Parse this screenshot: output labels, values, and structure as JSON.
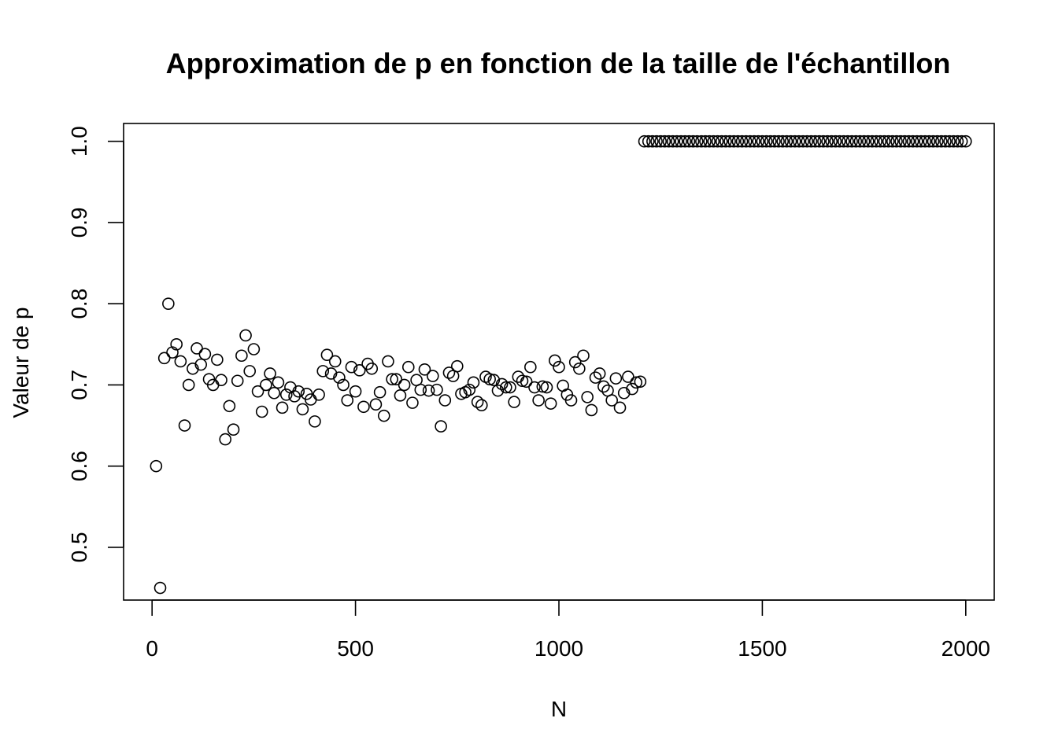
{
  "chart_data": {
    "type": "scatter",
    "title": "Approximation de p en fonction de la taille de l'échantillon",
    "xlabel": "N",
    "ylabel": "Valeur de p",
    "xlim": [
      -70,
      2070
    ],
    "ylim": [
      0.435,
      1.022
    ],
    "xticks": [
      0,
      500,
      1000,
      1500,
      2000
    ],
    "yticks": [
      0.5,
      0.6,
      0.7,
      0.8,
      0.9,
      1.0
    ],
    "xtick_labels": [
      "0",
      "500",
      "1000",
      "1500",
      "2000"
    ],
    "ytick_labels": [
      "0.5",
      "0.6",
      "0.7",
      "0.8",
      "0.9",
      "1.0"
    ],
    "grid": false,
    "legend": "none",
    "marker": "open-circle",
    "colors": {
      "stroke": "#000000",
      "background": "#ffffff"
    },
    "series": [
      {
        "x": [
          10,
          20,
          30,
          40,
          50,
          60,
          70,
          80,
          90,
          100,
          110,
          120,
          130,
          140,
          150,
          160,
          170,
          180,
          190,
          200,
          210,
          220,
          230,
          240,
          250,
          260,
          270,
          280,
          290,
          300,
          310,
          320,
          330,
          340,
          350,
          360,
          370,
          380,
          390,
          400,
          410,
          420,
          430,
          440,
          450,
          460,
          470,
          480,
          490,
          500,
          510,
          520,
          530,
          540,
          550,
          560,
          570,
          580,
          590,
          600,
          610,
          620,
          630,
          640,
          650,
          660,
          670,
          680,
          690,
          700,
          710,
          720,
          730,
          740,
          750,
          760,
          770,
          780,
          790,
          800,
          810,
          820,
          830,
          840,
          850,
          860,
          870,
          880,
          890,
          900,
          910,
          920,
          930,
          940,
          950,
          960,
          970,
          980,
          990,
          1000,
          1010,
          1020,
          1030,
          1040,
          1050,
          1060,
          1070,
          1080,
          1090,
          1100,
          1110,
          1120,
          1130,
          1140,
          1150,
          1160,
          1170,
          1180,
          1190,
          1200,
          1210,
          1220,
          1230,
          1240,
          1250,
          1260,
          1270,
          1280,
          1290,
          1300,
          1310,
          1320,
          1330,
          1340,
          1350,
          1360,
          1370,
          1380,
          1390,
          1400,
          1410,
          1420,
          1430,
          1440,
          1450,
          1460,
          1470,
          1480,
          1490,
          1500,
          1510,
          1520,
          1530,
          1540,
          1550,
          1560,
          1570,
          1580,
          1590,
          1600,
          1610,
          1620,
          1630,
          1640,
          1650,
          1660,
          1670,
          1680,
          1690,
          1700,
          1710,
          1720,
          1730,
          1740,
          1750,
          1760,
          1770,
          1780,
          1790,
          1800,
          1810,
          1820,
          1830,
          1840,
          1850,
          1860,
          1870,
          1880,
          1890,
          1900,
          1910,
          1920,
          1930,
          1940,
          1950,
          1960,
          1970,
          1980,
          1990,
          2000
        ],
        "y": [
          0.6,
          0.45,
          0.733,
          0.8,
          0.74,
          0.75,
          0.729,
          0.65,
          0.7,
          0.72,
          0.745,
          0.725,
          0.738,
          0.707,
          0.7,
          0.731,
          0.706,
          0.633,
          0.674,
          0.645,
          0.705,
          0.736,
          0.761,
          0.717,
          0.744,
          0.692,
          0.667,
          0.7,
          0.714,
          0.69,
          0.703,
          0.672,
          0.688,
          0.697,
          0.686,
          0.692,
          0.67,
          0.689,
          0.682,
          0.655,
          0.688,
          0.717,
          0.737,
          0.714,
          0.729,
          0.709,
          0.7,
          0.681,
          0.722,
          0.692,
          0.718,
          0.673,
          0.726,
          0.72,
          0.676,
          0.691,
          0.662,
          0.729,
          0.707,
          0.707,
          0.687,
          0.7,
          0.722,
          0.678,
          0.706,
          0.694,
          0.719,
          0.693,
          0.711,
          0.694,
          0.649,
          0.681,
          0.715,
          0.711,
          0.723,
          0.689,
          0.691,
          0.694,
          0.703,
          0.679,
          0.675,
          0.71,
          0.707,
          0.706,
          0.693,
          0.701,
          0.697,
          0.697,
          0.679,
          0.71,
          0.705,
          0.704,
          0.722,
          0.697,
          0.681,
          0.698,
          0.697,
          0.677,
          0.73,
          0.722,
          0.699,
          0.688,
          0.681,
          0.728,
          0.72,
          0.736,
          0.685,
          0.669,
          0.709,
          0.714,
          0.698,
          0.693,
          0.681,
          0.708,
          0.672,
          0.69,
          0.71,
          0.695,
          0.703,
          0.704,
          1.0,
          1.0,
          1.0,
          1.0,
          1.0,
          1.0,
          1.0,
          1.0,
          1.0,
          1.0,
          1.0,
          1.0,
          1.0,
          1.0,
          1.0,
          1.0,
          1.0,
          1.0,
          1.0,
          1.0,
          1.0,
          1.0,
          1.0,
          1.0,
          1.0,
          1.0,
          1.0,
          1.0,
          1.0,
          1.0,
          1.0,
          1.0,
          1.0,
          1.0,
          1.0,
          1.0,
          1.0,
          1.0,
          1.0,
          1.0,
          1.0,
          1.0,
          1.0,
          1.0,
          1.0,
          1.0,
          1.0,
          1.0,
          1.0,
          1.0,
          1.0,
          1.0,
          1.0,
          1.0,
          1.0,
          1.0,
          1.0,
          1.0,
          1.0,
          1.0,
          1.0,
          1.0,
          1.0,
          1.0,
          1.0,
          1.0,
          1.0,
          1.0,
          1.0,
          1.0,
          1.0,
          1.0,
          1.0,
          1.0,
          1.0,
          1.0,
          1.0,
          1.0,
          1.0,
          1.0
        ]
      }
    ]
  }
}
